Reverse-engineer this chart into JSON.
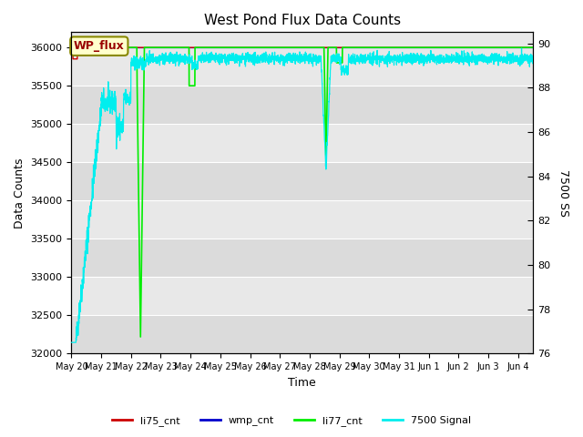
{
  "title": "West Pond Flux Data Counts",
  "xlabel": "Time",
  "ylabel_left": "Data Counts",
  "ylabel_right": "7500 SS",
  "ylim_left": [
    32000,
    36200
  ],
  "ylim_right": [
    76,
    90.5
  ],
  "yticks_left": [
    32000,
    32500,
    33000,
    33500,
    34000,
    34500,
    35000,
    35500,
    36000
  ],
  "yticks_right": [
    76,
    78,
    80,
    82,
    84,
    86,
    88,
    90
  ],
  "bg_color": "#e8e8e8",
  "annotation_text": "WP_flux",
  "annotation_bg": "#ffffcc",
  "annotation_border": "#888800",
  "annotation_text_color": "#990000",
  "colors": {
    "li75_cnt": "#cc0000",
    "wmp_cnt": "#0000cc",
    "li77_cnt": "#00ee00",
    "signal7500": "#00eeee"
  },
  "xtick_labels": [
    "May 20",
    "May 21",
    "May 22",
    "May 23",
    "May 24",
    "May 25",
    "May 26",
    "May 27",
    "May 28",
    "May 29",
    "May 30",
    "May 31",
    "Jun 1",
    "Jun 2",
    "Jun 3",
    "Jun 4"
  ],
  "xlim": [
    0,
    15.5
  ],
  "n_pts": 3000,
  "n_days": 15.5,
  "seed": 42
}
